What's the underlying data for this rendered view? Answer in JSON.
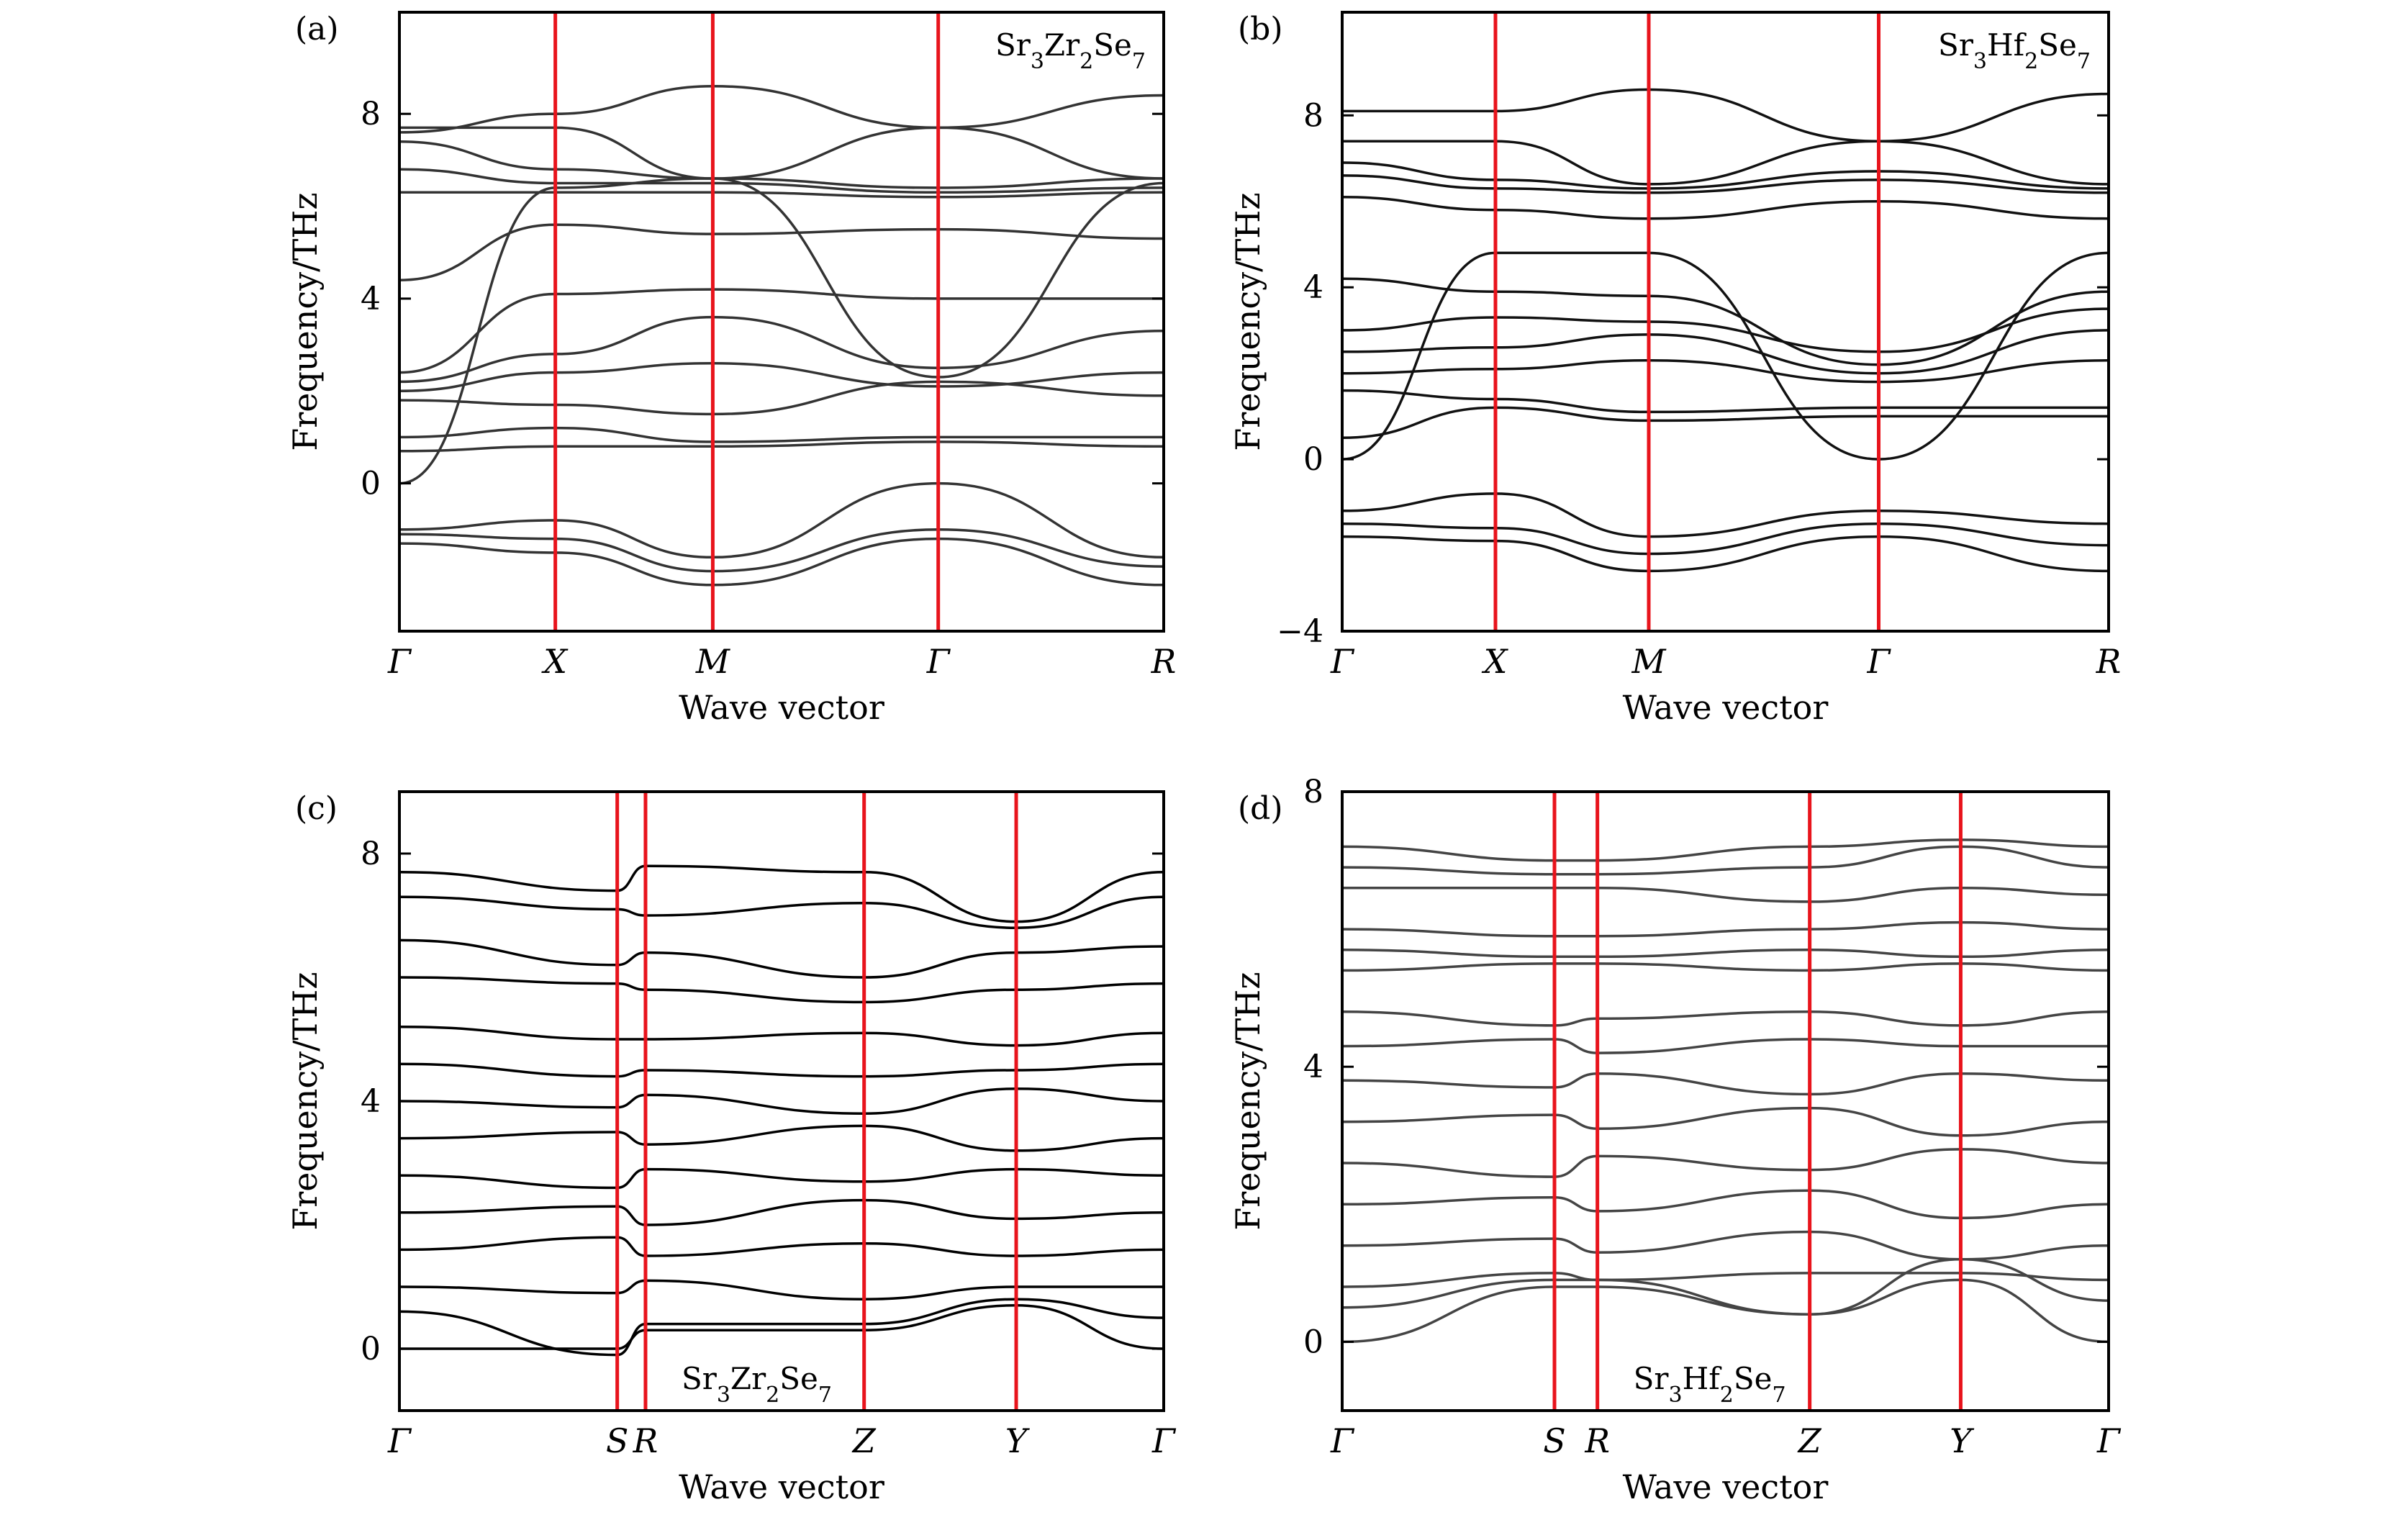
{
  "chart_data": [
    {
      "type": "line",
      "panel_label": "(a)",
      "material": [
        "Sr",
        "3",
        "Zr",
        "2",
        "Se",
        "7"
      ],
      "material_position": "top-right",
      "xlabel": "Wave vector",
      "ylabel": "Frequency/THz",
      "ylim": [
        -3.2,
        10.2
      ],
      "yticks": [
        0,
        4,
        8
      ],
      "ytick_labels": [
        "0",
        "4",
        "8"
      ],
      "kpoint_labels": [
        "Γ",
        "X",
        "M",
        "Γ",
        "R"
      ],
      "kpoint_x": [
        0,
        0.204,
        0.41,
        0.705,
        1.0
      ],
      "divider_x": [
        0.204,
        0.41,
        0.705
      ],
      "divider_color": "#e8141c",
      "band_color": "#333333",
      "series": [
        {
          "x": [
            0,
            0.204,
            0.41,
            0.705,
            1
          ],
          "y": [
            7.7,
            7.7,
            6.6,
            7.7,
            6.6
          ]
        },
        {
          "x": [
            0,
            0.204,
            0.41,
            0.705,
            1
          ],
          "y": [
            7.6,
            8.0,
            8.6,
            7.7,
            8.4
          ]
        },
        {
          "x": [
            0,
            0.204,
            0.41,
            0.705,
            1
          ],
          "y": [
            7.4,
            6.8,
            6.6,
            6.4,
            6.6
          ]
        },
        {
          "x": [
            0,
            0.204,
            0.41,
            0.705,
            1
          ],
          "y": [
            6.8,
            6.5,
            6.5,
            6.3,
            6.4
          ]
        },
        {
          "x": [
            0,
            0.204,
            0.41,
            0.705,
            1
          ],
          "y": [
            6.3,
            6.3,
            6.3,
            6.2,
            6.3
          ]
        },
        {
          "x": [
            0,
            0.204,
            0.41,
            0.705,
            1
          ],
          "y": [
            0,
            6.4,
            6.6,
            2.3,
            6.5
          ]
        },
        {
          "x": [
            0,
            0.204,
            0.41,
            0.705,
            1
          ],
          "y": [
            4.4,
            5.6,
            5.4,
            5.5,
            5.3
          ]
        },
        {
          "x": [
            0,
            0.204,
            0.41,
            0.705,
            1
          ],
          "y": [
            2.4,
            4.1,
            4.2,
            4.0,
            4.0
          ]
        },
        {
          "x": [
            0,
            0.204,
            0.41,
            0.705,
            1
          ],
          "y": [
            2.2,
            2.8,
            3.6,
            2.5,
            3.3
          ]
        },
        {
          "x": [
            0,
            0.204,
            0.41,
            0.705,
            1
          ],
          "y": [
            2.0,
            2.4,
            2.6,
            2.1,
            2.4
          ]
        },
        {
          "x": [
            0,
            0.204,
            0.41,
            0.705,
            1
          ],
          "y": [
            1.8,
            1.7,
            1.5,
            2.2,
            1.9
          ]
        },
        {
          "x": [
            0,
            0.204,
            0.41,
            0.705,
            1
          ],
          "y": [
            1.0,
            1.2,
            0.9,
            1.0,
            1.0
          ]
        },
        {
          "x": [
            0,
            0.204,
            0.41,
            0.705,
            1
          ],
          "y": [
            0.7,
            0.8,
            0.8,
            0.9,
            0.8
          ]
        },
        {
          "x": [
            0,
            0.204,
            0.41,
            0.705,
            1
          ],
          "y": [
            -1.0,
            -0.8,
            -1.6,
            0,
            -1.6
          ]
        },
        {
          "x": [
            0,
            0.204,
            0.41,
            0.705,
            1
          ],
          "y": [
            -1.1,
            -1.2,
            -1.9,
            -1.0,
            -1.8
          ]
        },
        {
          "x": [
            0,
            0.204,
            0.41,
            0.705,
            1
          ],
          "y": [
            -1.3,
            -1.5,
            -2.2,
            -1.2,
            -2.2
          ]
        }
      ]
    },
    {
      "type": "line",
      "panel_label": "(b)",
      "material": [
        "Sr",
        "3",
        "Hf",
        "2",
        "Se",
        "7"
      ],
      "material_position": "top-right",
      "xlabel": "Wave vector",
      "ylabel": "Frequency/THz",
      "ylim": [
        -4,
        10.4
      ],
      "yticks": [
        -4,
        0,
        4,
        8
      ],
      "ytick_labels": [
        "−4",
        "0",
        "4",
        "8"
      ],
      "kpoint_labels": [
        "Γ",
        "X",
        "M",
        "Γ",
        "R"
      ],
      "kpoint_x": [
        0,
        0.2,
        0.4,
        0.7,
        1.0
      ],
      "divider_x": [
        0.2,
        0.4,
        0.7
      ],
      "divider_color": "#e8141c",
      "band_color": "#111111",
      "series": [
        {
          "x": [
            0,
            0.2,
            0.4,
            0.7,
            1
          ],
          "y": [
            8.1,
            8.1,
            8.6,
            7.4,
            8.5
          ]
        },
        {
          "x": [
            0,
            0.2,
            0.4,
            0.7,
            1
          ],
          "y": [
            7.4,
            7.4,
            6.4,
            7.4,
            6.4
          ]
        },
        {
          "x": [
            0,
            0.2,
            0.4,
            0.7,
            1
          ],
          "y": [
            6.9,
            6.5,
            6.3,
            6.7,
            6.3
          ]
        },
        {
          "x": [
            0,
            0.2,
            0.4,
            0.7,
            1
          ],
          "y": [
            6.6,
            6.3,
            6.2,
            6.5,
            6.2
          ]
        },
        {
          "x": [
            0,
            0.2,
            0.4,
            0.7,
            1
          ],
          "y": [
            6.1,
            5.8,
            5.6,
            6.0,
            5.6
          ]
        },
        {
          "x": [
            0,
            0.2,
            0.4,
            0.7,
            1
          ],
          "y": [
            0,
            4.8,
            4.8,
            0,
            4.8
          ]
        },
        {
          "x": [
            0,
            0.2,
            0.4,
            0.7,
            1
          ],
          "y": [
            4.2,
            3.9,
            3.8,
            2.2,
            3.9
          ]
        },
        {
          "x": [
            0,
            0.2,
            0.4,
            0.7,
            1
          ],
          "y": [
            3.0,
            3.3,
            3.2,
            2.5,
            3.5
          ]
        },
        {
          "x": [
            0,
            0.2,
            0.4,
            0.7,
            1
          ],
          "y": [
            2.5,
            2.6,
            2.9,
            2.0,
            3.0
          ]
        },
        {
          "x": [
            0,
            0.2,
            0.4,
            0.7,
            1
          ],
          "y": [
            2.0,
            2.1,
            2.3,
            1.8,
            2.3
          ]
        },
        {
          "x": [
            0,
            0.2,
            0.4,
            0.7,
            1
          ],
          "y": [
            1.6,
            1.4,
            1.1,
            1.2,
            1.2
          ]
        },
        {
          "x": [
            0,
            0.2,
            0.4,
            0.7,
            1
          ],
          "y": [
            0.5,
            1.2,
            0.9,
            1.0,
            1.0
          ]
        },
        {
          "x": [
            0,
            0.2,
            0.4,
            0.7,
            1
          ],
          "y": [
            -1.2,
            -0.8,
            -1.8,
            -1.2,
            -1.5
          ]
        },
        {
          "x": [
            0,
            0.2,
            0.4,
            0.7,
            1
          ],
          "y": [
            -1.5,
            -1.6,
            -2.2,
            -1.5,
            -2.0
          ]
        },
        {
          "x": [
            0,
            0.2,
            0.4,
            0.7,
            1
          ],
          "y": [
            -1.8,
            -1.9,
            -2.6,
            -1.8,
            -2.6
          ]
        }
      ]
    },
    {
      "type": "line",
      "panel_label": "(c)",
      "material": [
        "Sr",
        "3",
        "Zr",
        "2",
        "Se",
        "7"
      ],
      "material_position": "bottom-center",
      "xlabel": "Wave vector",
      "ylabel": "Frequency/THz",
      "ylim": [
        -1,
        9
      ],
      "yticks": [
        0,
        4,
        8
      ],
      "ytick_labels": [
        "0",
        "4",
        "8"
      ],
      "kpoint_labels": [
        "Γ",
        "S",
        "R",
        "Z",
        "Y",
        "Γ"
      ],
      "kpoint_x": [
        0,
        0.285,
        0.322,
        0.608,
        0.807,
        1.0
      ],
      "divider_x": [
        0.285,
        0.322,
        0.608,
        0.807
      ],
      "divider_color": "#e8141c",
      "band_color": "#000000",
      "series": [
        {
          "x": [
            0,
            0.285,
            0.322,
            0.608,
            0.807,
            1
          ],
          "y": [
            7.7,
            7.4,
            7.8,
            7.7,
            6.9,
            7.7
          ]
        },
        {
          "x": [
            0,
            0.285,
            0.322,
            0.608,
            0.807,
            1
          ],
          "y": [
            7.3,
            7.1,
            7.0,
            7.2,
            6.8,
            7.3
          ]
        },
        {
          "x": [
            0,
            0.285,
            0.322,
            0.608,
            0.807,
            1
          ],
          "y": [
            6.6,
            6.2,
            6.4,
            6.0,
            6.4,
            6.5
          ]
        },
        {
          "x": [
            0,
            0.285,
            0.322,
            0.608,
            0.807,
            1
          ],
          "y": [
            6.0,
            5.9,
            5.8,
            5.6,
            5.8,
            5.9
          ]
        },
        {
          "x": [
            0,
            0.285,
            0.322,
            0.608,
            0.807,
            1
          ],
          "y": [
            5.2,
            5.0,
            5.0,
            5.1,
            4.9,
            5.1
          ]
        },
        {
          "x": [
            0,
            0.285,
            0.322,
            0.608,
            0.807,
            1
          ],
          "y": [
            4.6,
            4.4,
            4.5,
            4.4,
            4.5,
            4.6
          ]
        },
        {
          "x": [
            0,
            0.285,
            0.322,
            0.608,
            0.807,
            1
          ],
          "y": [
            4.0,
            3.9,
            4.1,
            3.8,
            4.2,
            4.0
          ]
        },
        {
          "x": [
            0,
            0.285,
            0.322,
            0.608,
            0.807,
            1
          ],
          "y": [
            3.4,
            3.5,
            3.3,
            3.6,
            3.2,
            3.4
          ]
        },
        {
          "x": [
            0,
            0.285,
            0.322,
            0.608,
            0.807,
            1
          ],
          "y": [
            2.8,
            2.6,
            2.9,
            2.7,
            2.9,
            2.8
          ]
        },
        {
          "x": [
            0,
            0.285,
            0.322,
            0.608,
            0.807,
            1
          ],
          "y": [
            2.2,
            2.3,
            2.0,
            2.4,
            2.1,
            2.2
          ]
        },
        {
          "x": [
            0,
            0.285,
            0.322,
            0.608,
            0.807,
            1
          ],
          "y": [
            1.6,
            1.8,
            1.5,
            1.7,
            1.5,
            1.6
          ]
        },
        {
          "x": [
            0,
            0.285,
            0.322,
            0.608,
            0.807,
            1
          ],
          "y": [
            1.0,
            0.9,
            1.1,
            0.8,
            1.0,
            1.0
          ]
        },
        {
          "x": [
            0,
            0.285,
            0.322,
            0.608,
            0.807,
            1
          ],
          "y": [
            0,
            0,
            0.3,
            0.3,
            0.7,
            0
          ]
        },
        {
          "x": [
            0,
            0.285,
            0.322,
            0.608,
            0.807,
            1
          ],
          "y": [
            0.6,
            -0.1,
            0.4,
            0.4,
            0.8,
            0.5
          ]
        }
      ]
    },
    {
      "type": "line",
      "panel_label": "(d)",
      "material": [
        "Sr",
        "3",
        "Hf",
        "2",
        "Se",
        "7"
      ],
      "material_position": "bottom-center",
      "xlabel": "Wave vector",
      "ylabel": "Frequency/THz",
      "ylim": [
        -1,
        8
      ],
      "yticks": [
        0,
        4,
        8
      ],
      "ytick_labels": [
        "0",
        "4",
        "8"
      ],
      "kpoint_labels": [
        "Γ",
        "S",
        "R",
        "Z",
        "Y",
        "Γ"
      ],
      "kpoint_x": [
        0,
        0.277,
        0.333,
        0.61,
        0.807,
        1.0
      ],
      "divider_x": [
        0.277,
        0.333,
        0.61,
        0.807
      ],
      "divider_color": "#e8141c",
      "band_color": "#444444",
      "series": [
        {
          "x": [
            0,
            0.277,
            0.333,
            0.61,
            0.807,
            1
          ],
          "y": [
            7.2,
            7.0,
            7.0,
            7.2,
            7.3,
            7.2
          ]
        },
        {
          "x": [
            0,
            0.277,
            0.333,
            0.61,
            0.807,
            1
          ],
          "y": [
            6.9,
            6.8,
            6.8,
            6.9,
            7.2,
            6.9
          ]
        },
        {
          "x": [
            0,
            0.277,
            0.333,
            0.61,
            0.807,
            1
          ],
          "y": [
            6.6,
            6.6,
            6.6,
            6.4,
            6.6,
            6.5
          ]
        },
        {
          "x": [
            0,
            0.277,
            0.333,
            0.61,
            0.807,
            1
          ],
          "y": [
            6.0,
            5.9,
            5.9,
            6.0,
            6.1,
            6.0
          ]
        },
        {
          "x": [
            0,
            0.277,
            0.333,
            0.61,
            0.807,
            1
          ],
          "y": [
            5.7,
            5.6,
            5.6,
            5.7,
            5.6,
            5.7
          ]
        },
        {
          "x": [
            0,
            0.277,
            0.333,
            0.61,
            0.807,
            1
          ],
          "y": [
            5.4,
            5.5,
            5.5,
            5.4,
            5.5,
            5.4
          ]
        },
        {
          "x": [
            0,
            0.277,
            0.333,
            0.61,
            0.807,
            1
          ],
          "y": [
            4.8,
            4.6,
            4.7,
            4.8,
            4.6,
            4.8
          ]
        },
        {
          "x": [
            0,
            0.277,
            0.333,
            0.61,
            0.807,
            1
          ],
          "y": [
            4.3,
            4.4,
            4.2,
            4.4,
            4.3,
            4.3
          ]
        },
        {
          "x": [
            0,
            0.277,
            0.333,
            0.61,
            0.807,
            1
          ],
          "y": [
            3.8,
            3.7,
            3.9,
            3.6,
            3.9,
            3.8
          ]
        },
        {
          "x": [
            0,
            0.277,
            0.333,
            0.61,
            0.807,
            1
          ],
          "y": [
            3.2,
            3.3,
            3.1,
            3.4,
            3.0,
            3.2
          ]
        },
        {
          "x": [
            0,
            0.277,
            0.333,
            0.61,
            0.807,
            1
          ],
          "y": [
            2.6,
            2.4,
            2.7,
            2.5,
            2.8,
            2.6
          ]
        },
        {
          "x": [
            0,
            0.277,
            0.333,
            0.61,
            0.807,
            1
          ],
          "y": [
            2.0,
            2.1,
            1.9,
            2.2,
            1.8,
            2.0
          ]
        },
        {
          "x": [
            0,
            0.277,
            0.333,
            0.61,
            0.807,
            1
          ],
          "y": [
            1.4,
            1.5,
            1.3,
            1.6,
            1.2,
            1.4
          ]
        },
        {
          "x": [
            0,
            0.277,
            0.333,
            0.61,
            0.807,
            1
          ],
          "y": [
            0.8,
            1.0,
            0.9,
            1.0,
            1.0,
            0.9
          ]
        },
        {
          "x": [
            0,
            0.277,
            0.333,
            0.61,
            0.807,
            1
          ],
          "y": [
            0,
            0.8,
            0.8,
            0.4,
            0.9,
            0
          ]
        },
        {
          "x": [
            0,
            0.277,
            0.333,
            0.61,
            0.807,
            1
          ],
          "y": [
            0.5,
            0.9,
            0.9,
            0.4,
            1.2,
            0.6
          ]
        }
      ]
    }
  ]
}
